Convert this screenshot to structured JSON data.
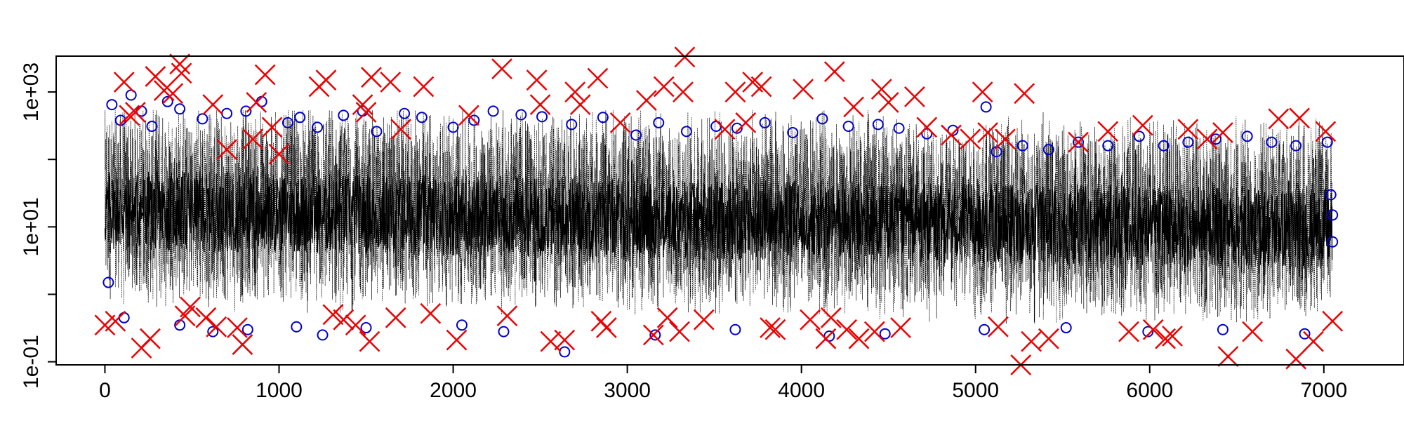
{
  "chart_data": {
    "type": "line",
    "title": "",
    "xlabel": "",
    "ylabel": "",
    "xlim": [
      -280,
      7420
    ],
    "ylim": [
      0.09,
      3400
    ],
    "y_scale": "log",
    "grid": false,
    "legend": "none",
    "x_ticks": [
      0,
      1000,
      2000,
      3000,
      4000,
      5000,
      6000,
      7000
    ],
    "x_tick_labels": [
      "0",
      "1000",
      "2000",
      "3000",
      "4000",
      "5000",
      "6000",
      "7000"
    ],
    "y_ticks": [
      0.1,
      10,
      1000
    ],
    "y_tick_labels": [
      "1e-01",
      "1e+01",
      "1e+03"
    ],
    "colors": {
      "line": "#000000",
      "circles": "#0000cc",
      "crosses": "#ee0000"
    },
    "line_series": {
      "n_points": 7050,
      "typical_range": [
        0.3,
        300
      ]
    },
    "circle_points": [
      [
        40,
        650
      ],
      [
        90,
        380
      ],
      [
        150,
        900
      ],
      [
        210,
        520
      ],
      [
        270,
        310
      ],
      [
        360,
        720
      ],
      [
        430,
        560
      ],
      [
        560,
        400
      ],
      [
        700,
        480
      ],
      [
        810,
        520
      ],
      [
        900,
        720
      ],
      [
        1050,
        350
      ],
      [
        1120,
        420
      ],
      [
        1220,
        300
      ],
      [
        1370,
        450
      ],
      [
        1480,
        520
      ],
      [
        1560,
        260
      ],
      [
        1720,
        480
      ],
      [
        1820,
        420
      ],
      [
        2000,
        300
      ],
      [
        2120,
        380
      ],
      [
        2230,
        520
      ],
      [
        2390,
        460
      ],
      [
        2510,
        430
      ],
      [
        2680,
        330
      ],
      [
        2860,
        420
      ],
      [
        3050,
        230
      ],
      [
        3180,
        350
      ],
      [
        3340,
        260
      ],
      [
        3510,
        310
      ],
      [
        3630,
        290
      ],
      [
        3790,
        350
      ],
      [
        3950,
        250
      ],
      [
        4120,
        400
      ],
      [
        4270,
        310
      ],
      [
        4440,
        330
      ],
      [
        4560,
        290
      ],
      [
        4720,
        240
      ],
      [
        4870,
        270
      ],
      [
        5060,
        600
      ],
      [
        5120,
        130
      ],
      [
        5270,
        160
      ],
      [
        5420,
        140
      ],
      [
        5590,
        180
      ],
      [
        5760,
        160
      ],
      [
        5940,
        220
      ],
      [
        6080,
        160
      ],
      [
        6220,
        180
      ],
      [
        6380,
        200
      ],
      [
        6560,
        220
      ],
      [
        6700,
        180
      ],
      [
        6840,
        160
      ],
      [
        7020,
        180
      ],
      [
        20,
        1.5
      ],
      [
        110,
        0.45
      ],
      [
        430,
        0.35
      ],
      [
        620,
        0.28
      ],
      [
        820,
        0.3
      ],
      [
        1100,
        0.33
      ],
      [
        1250,
        0.25
      ],
      [
        1500,
        0.32
      ],
      [
        2050,
        0.35
      ],
      [
        2290,
        0.28
      ],
      [
        2640,
        0.14
      ],
      [
        3160,
        0.25
      ],
      [
        3620,
        0.3
      ],
      [
        4160,
        0.24
      ],
      [
        4480,
        0.26
      ],
      [
        5050,
        0.3
      ],
      [
        5520,
        0.32
      ],
      [
        5990,
        0.28
      ],
      [
        6420,
        0.3
      ],
      [
        6890,
        0.26
      ],
      [
        7050,
        15
      ],
      [
        7050,
        6
      ],
      [
        7040,
        30
      ]
    ],
    "cross_points": [
      [
        0,
        0.35
      ],
      [
        60,
        0.4
      ],
      [
        110,
        1400
      ],
      [
        140,
        450
      ],
      [
        175,
        500
      ],
      [
        210,
        0.16
      ],
      [
        260,
        0.22
      ],
      [
        290,
        1700
      ],
      [
        340,
        1050
      ],
      [
        390,
        950
      ],
      [
        430,
        2600
      ],
      [
        440,
        1900
      ],
      [
        460,
        0.48
      ],
      [
        490,
        0.65
      ],
      [
        580,
        0.45
      ],
      [
        620,
        650
      ],
      [
        640,
        0.33
      ],
      [
        700,
        140
      ],
      [
        760,
        0.32
      ],
      [
        790,
        0.18
      ],
      [
        850,
        200
      ],
      [
        870,
        700
      ],
      [
        920,
        1800
      ],
      [
        960,
        300
      ],
      [
        1000,
        120
      ],
      [
        1230,
        1200
      ],
      [
        1270,
        1500
      ],
      [
        1310,
        0.5
      ],
      [
        1370,
        0.42
      ],
      [
        1440,
        0.35
      ],
      [
        1480,
        650
      ],
      [
        1500,
        500
      ],
      [
        1520,
        0.2
      ],
      [
        1530,
        1650
      ],
      [
        1640,
        1400
      ],
      [
        1670,
        0.45
      ],
      [
        1700,
        280
      ],
      [
        1830,
        1200
      ],
      [
        1870,
        0.52
      ],
      [
        2020,
        0.21
      ],
      [
        2090,
        450
      ],
      [
        2280,
        2200
      ],
      [
        2310,
        0.48
      ],
      [
        2480,
        1500
      ],
      [
        2500,
        650
      ],
      [
        2560,
        0.2
      ],
      [
        2640,
        0.21
      ],
      [
        2700,
        1000
      ],
      [
        2730,
        650
      ],
      [
        2830,
        1600
      ],
      [
        2850,
        0.4
      ],
      [
        2880,
        0.32
      ],
      [
        2960,
        350
      ],
      [
        3110,
        750
      ],
      [
        3150,
        0.25
      ],
      [
        3210,
        1200
      ],
      [
        3230,
        0.45
      ],
      [
        3300,
        0.28
      ],
      [
        3320,
        1000
      ],
      [
        3330,
        3300
      ],
      [
        3440,
        0.42
      ],
      [
        3560,
        280
      ],
      [
        3620,
        1000
      ],
      [
        3680,
        350
      ],
      [
        3720,
        1400
      ],
      [
        3770,
        1200
      ],
      [
        3820,
        0.32
      ],
      [
        3850,
        0.3
      ],
      [
        4010,
        1100
      ],
      [
        4050,
        0.42
      ],
      [
        4140,
        0.22
      ],
      [
        4170,
        0.45
      ],
      [
        4190,
        2000
      ],
      [
        4260,
        0.3
      ],
      [
        4300,
        600
      ],
      [
        4330,
        0.22
      ],
      [
        4420,
        0.28
      ],
      [
        4460,
        1100
      ],
      [
        4500,
        700
      ],
      [
        4570,
        0.32
      ],
      [
        4650,
        850
      ],
      [
        4720,
        300
      ],
      [
        4860,
        230
      ],
      [
        4970,
        200
      ],
      [
        5040,
        1000
      ],
      [
        5070,
        250
      ],
      [
        5130,
        0.33
      ],
      [
        5170,
        200
      ],
      [
        5260,
        0.09
      ],
      [
        5280,
        950
      ],
      [
        5320,
        0.2
      ],
      [
        5420,
        0.22
      ],
      [
        5590,
        180
      ],
      [
        5760,
        260
      ],
      [
        5880,
        0.28
      ],
      [
        5960,
        320
      ],
      [
        6020,
        0.3
      ],
      [
        6090,
        0.22
      ],
      [
        6130,
        0.24
      ],
      [
        6220,
        280
      ],
      [
        6330,
        200
      ],
      [
        6420,
        250
      ],
      [
        6450,
        0.12
      ],
      [
        6590,
        0.28
      ],
      [
        6740,
        400
      ],
      [
        6840,
        0.11
      ],
      [
        6860,
        410
      ],
      [
        6940,
        0.2
      ],
      [
        7010,
        260
      ],
      [
        7050,
        0.4
      ]
    ]
  }
}
